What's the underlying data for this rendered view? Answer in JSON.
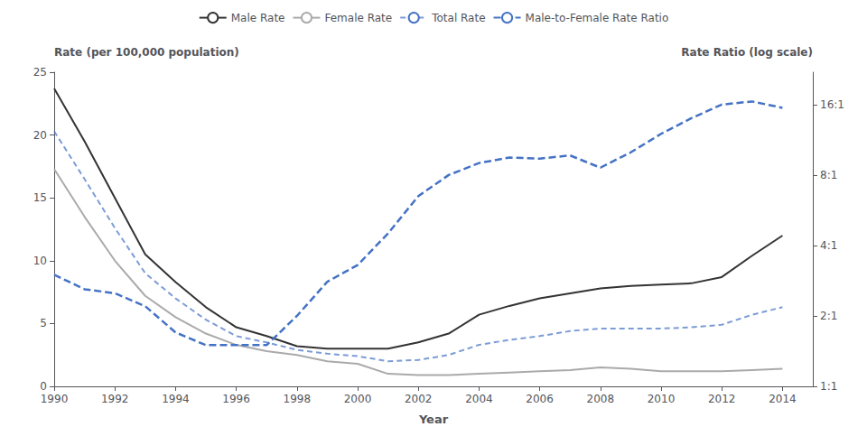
{
  "chart_data": {
    "type": "line",
    "x": [
      1990,
      1991,
      1992,
      1993,
      1994,
      1995,
      1996,
      1997,
      1998,
      1999,
      2000,
      2001,
      2002,
      2003,
      2004,
      2005,
      2006,
      2007,
      2008,
      2009,
      2010,
      2011,
      2012,
      2013,
      2014
    ],
    "xlabel": "Year",
    "ylabel": "Rate (per 100,000 population)",
    "y2label": "Rate Ratio (log scale)",
    "xlim": [
      1990,
      2015
    ],
    "xticks": [
      1990,
      1992,
      1994,
      1996,
      1998,
      2000,
      2002,
      2004,
      2006,
      2008,
      2010,
      2012,
      2014
    ],
    "ylim": [
      0,
      25
    ],
    "yticks": [
      0,
      5,
      10,
      15,
      20,
      25
    ],
    "y2lim": [
      1.0,
      22.0
    ],
    "y2ticks": [
      {
        "value": 1,
        "label": "1:1"
      },
      {
        "value": 2,
        "label": "2:1"
      },
      {
        "value": 4,
        "label": "4:1"
      },
      {
        "value": 8,
        "label": "8:1"
      },
      {
        "value": 16,
        "label": "16:1"
      }
    ],
    "log": "y2",
    "grid": false,
    "legend": "top",
    "series": [
      {
        "name": "Male Rate",
        "color": "#333333",
        "line_style": "solid",
        "values": [
          23.7,
          19.5,
          15.0,
          10.5,
          8.3,
          6.3,
          4.7,
          4.0,
          3.2,
          3.0,
          3.0,
          3.0,
          3.5,
          4.2,
          5.7,
          6.4,
          7.0,
          7.4,
          7.8,
          8.0,
          8.1,
          8.2,
          8.7,
          10.4,
          12.0
        ]
      },
      {
        "name": "Female Rate",
        "color": "#aaaaaa",
        "line_style": "solid",
        "values": [
          17.3,
          13.5,
          10.0,
          7.2,
          5.5,
          4.2,
          3.3,
          2.8,
          2.5,
          2.0,
          1.8,
          1.0,
          0.9,
          0.9,
          1.0,
          1.1,
          1.2,
          1.3,
          1.5,
          1.4,
          1.2,
          1.2,
          1.2,
          1.3,
          1.4
        ]
      },
      {
        "name": "Total Rate",
        "color": "#4472c4",
        "line_style": "dashed",
        "values": [
          20.3,
          16.5,
          12.6,
          9.0,
          7.0,
          5.3,
          4.0,
          3.5,
          2.9,
          2.6,
          2.4,
          2.0,
          2.1,
          2.5,
          3.3,
          3.7,
          4.0,
          4.4,
          4.6,
          4.6,
          4.6,
          4.7,
          4.9,
          5.7,
          6.3
        ]
      },
      {
        "name": "Male-to-Female Rate Ratio",
        "color": "#4472c4",
        "line_style": "dashed",
        "axis": "y2",
        "values": [
          3.0,
          2.6,
          2.5,
          2.2,
          1.7,
          1.5,
          1.5,
          1.5,
          2.0,
          2.8,
          3.3,
          4.5,
          6.5,
          8.0,
          9.0,
          9.5,
          9.4,
          9.7,
          8.6,
          10.0,
          12.0,
          14.0,
          16.0,
          16.5,
          15.5
        ]
      }
    ]
  }
}
